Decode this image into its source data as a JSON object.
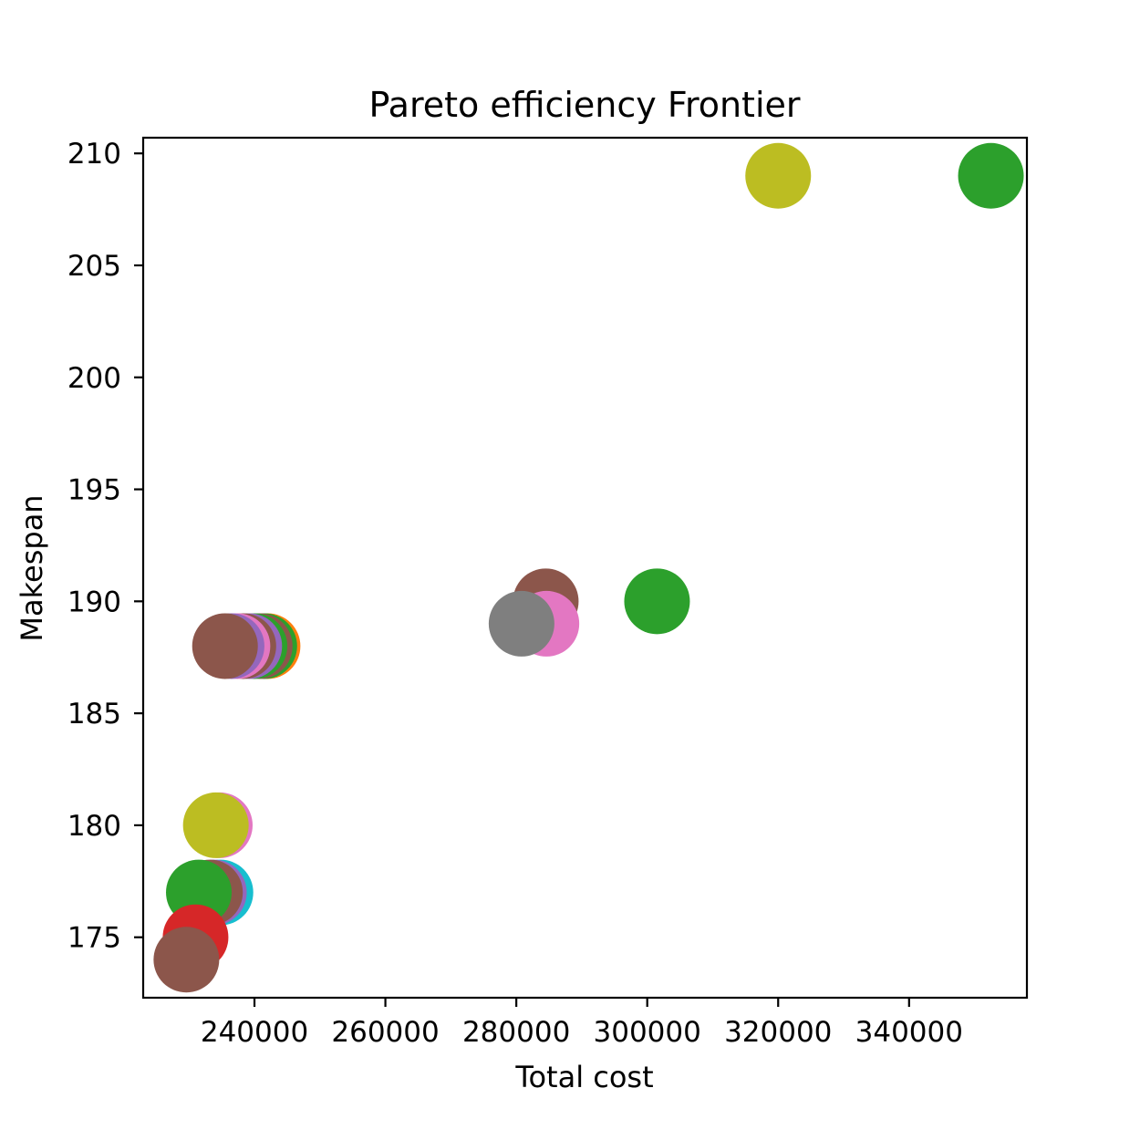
{
  "chart_data": {
    "type": "scatter",
    "title": "Pareto efficiency Frontier",
    "xlabel": "Total cost",
    "ylabel": "Makespan",
    "xlim": [
      223000,
      358000
    ],
    "ylim": [
      172.3,
      210.7
    ],
    "xticks": [
      240000,
      260000,
      280000,
      300000,
      320000,
      340000
    ],
    "yticks": [
      175,
      180,
      185,
      190,
      195,
      200,
      205,
      210
    ],
    "grid": false,
    "legend": "none",
    "points": [
      {
        "x": 242000,
        "y": 188,
        "color": "#ff7f0e"
      },
      {
        "x": 241500,
        "y": 188,
        "color": "#2ca02c"
      },
      {
        "x": 240800,
        "y": 188,
        "color": "#8c564b"
      },
      {
        "x": 240000,
        "y": 188,
        "color": "#2ca02c"
      },
      {
        "x": 239200,
        "y": 188,
        "color": "#9467bd"
      },
      {
        "x": 238300,
        "y": 188,
        "color": "#8c564b"
      },
      {
        "x": 237400,
        "y": 188,
        "color": "#e377c2"
      },
      {
        "x": 236500,
        "y": 188,
        "color": "#9467bd"
      },
      {
        "x": 235500,
        "y": 188,
        "color": "#8c564b"
      },
      {
        "x": 284500,
        "y": 190,
        "color": "#8c564b"
      },
      {
        "x": 301500,
        "y": 190,
        "color": "#2ca02c"
      },
      {
        "x": 284600,
        "y": 189,
        "color": "#e377c2"
      },
      {
        "x": 280800,
        "y": 189,
        "color": "#7f7f7f"
      },
      {
        "x": 320000,
        "y": 209,
        "color": "#bcbd22"
      },
      {
        "x": 352500,
        "y": 209,
        "color": "#2ca02c"
      },
      {
        "x": 234700,
        "y": 180,
        "color": "#e377c2"
      },
      {
        "x": 234100,
        "y": 180,
        "color": "#bcbd22"
      },
      {
        "x": 234800,
        "y": 177,
        "color": "#17becf"
      },
      {
        "x": 233800,
        "y": 177,
        "color": "#9467bd"
      },
      {
        "x": 233200,
        "y": 177,
        "color": "#8c564b"
      },
      {
        "x": 231500,
        "y": 177,
        "color": "#2ca02c"
      },
      {
        "x": 231000,
        "y": 175,
        "color": "#d62728"
      },
      {
        "x": 229600,
        "y": 174,
        "color": "#8c564b"
      }
    ]
  }
}
